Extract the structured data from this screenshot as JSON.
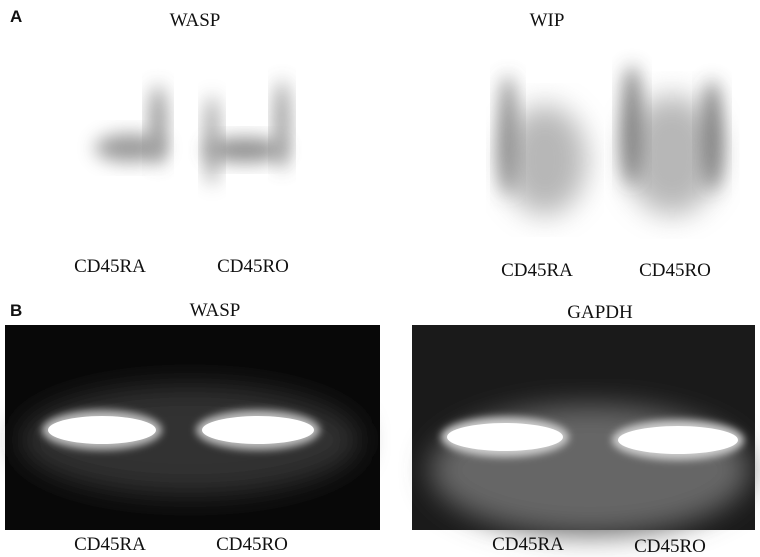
{
  "panels": [
    {
      "label": "A",
      "blots": [
        {
          "title": "WASP",
          "lanes": [
            "CD45RA",
            "CD45RO"
          ]
        },
        {
          "title": "WIP",
          "lanes": [
            "CD45RA",
            "CD45RO"
          ]
        }
      ]
    },
    {
      "label": "B",
      "blots": [
        {
          "title": "WASP",
          "lanes": [
            "CD45RA",
            "CD45RO"
          ]
        },
        {
          "title": "GAPDH",
          "lanes": [
            "CD45RA",
            "CD45RO"
          ]
        }
      ]
    }
  ]
}
